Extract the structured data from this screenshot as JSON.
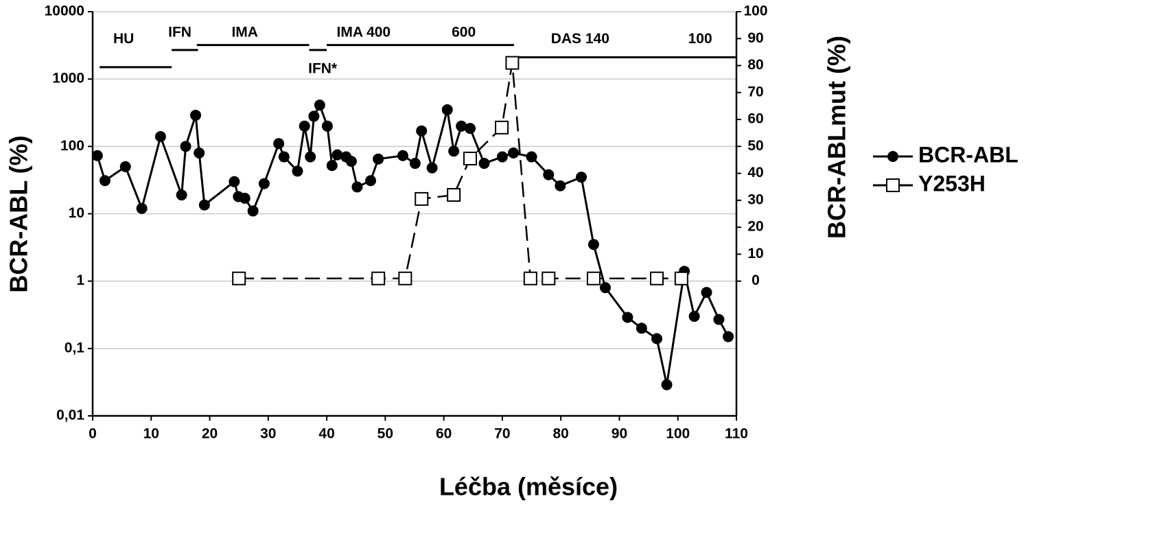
{
  "chart_data": {
    "type": "line",
    "x_label": "Léčba (měsíce)",
    "y_label": "BCR-ABL (%)",
    "y2_label": "BCR-ABLmut (%)",
    "xlim": [
      0,
      110
    ],
    "xticks": [
      0,
      10,
      20,
      30,
      40,
      50,
      60,
      70,
      80,
      90,
      100,
      110
    ],
    "ylim": [
      0.01,
      10000
    ],
    "log_y": true,
    "yticks": [
      {
        "value": 0.01,
        "label": "0,01"
      },
      {
        "value": 0.1,
        "label": "0,1"
      },
      1,
      10,
      100,
      1000,
      10000
    ],
    "y2lim": [
      -50,
      100
    ],
    "y2ticks": [
      0,
      10,
      20,
      30,
      40,
      50,
      60,
      70,
      80,
      90,
      100
    ],
    "grid": true,
    "legend": "right",
    "series": [
      {
        "name": "BCR-ABL",
        "color": "#000000",
        "line_style": "solid",
        "marker": "circle",
        "x": [
          0.8,
          2.1,
          5.6,
          8.4,
          11.6,
          15.2,
          15.9,
          17.6,
          18.2,
          19.1,
          24.2,
          24.9,
          26,
          27.4,
          29.3,
          31.8,
          32.7,
          35,
          36.2,
          37.2,
          37.8,
          38.8,
          40.1,
          40.9,
          41.8,
          43.3,
          44.2,
          45.2,
          47.5,
          48.8,
          53,
          55.1,
          56.2,
          58,
          60.6,
          61.7,
          63,
          64.5,
          66.9,
          70,
          71.9,
          75,
          77.9,
          79.9,
          83.5,
          85.6,
          87.6,
          91.4,
          93.8,
          96.4,
          98.1,
          101.1,
          102.8,
          104.9,
          107,
          108.6
        ],
        "values": [
          73,
          31,
          50,
          12,
          140,
          19,
          100,
          290,
          80,
          13.5,
          30,
          18,
          17,
          11,
          28,
          110,
          70,
          43,
          200,
          70,
          280,
          410,
          200,
          52,
          75,
          70,
          60,
          25,
          31,
          65,
          73,
          56,
          170,
          48,
          350,
          85,
          200,
          185,
          56,
          70,
          80,
          70,
          38,
          26,
          35,
          3.5,
          0.8,
          0.29,
          0.2,
          0.14,
          0.029,
          1.4,
          0.3,
          0.68,
          0.27,
          0.15
        ]
      },
      {
        "name": "Y253H",
        "color": "#000000",
        "line_style": "dashed",
        "marker": "square",
        "axis": "y2",
        "x": [
          25,
          48.8,
          53.4,
          56.2,
          61.7,
          64.5,
          69.9,
          71.7,
          74.8,
          77.9,
          85.6,
          96.4,
          100.6
        ],
        "values": [
          1,
          1,
          1,
          30.5,
          32,
          45.5,
          57,
          81,
          1,
          1,
          1,
          1,
          1
        ]
      }
    ],
    "treatment_bars": [
      {
        "start": 1.2,
        "end": 13.5,
        "y": 1500
      },
      {
        "start": 13.5,
        "end": 18,
        "y": 2700
      },
      {
        "start": 17.8,
        "end": 37,
        "y": 3200
      },
      {
        "start": 37,
        "end": 40,
        "y": 2700
      },
      {
        "start": 40,
        "end": 72,
        "y": 3200
      },
      {
        "start": 72,
        "end": 110,
        "y": 2100
      }
    ],
    "annotations": [
      {
        "text": "HU",
        "x": 5.3,
        "y": 3850
      },
      {
        "text": "IFN",
        "x": 14.9,
        "y": 4850
      },
      {
        "text": "IMA",
        "x": 26,
        "y": 4850
      },
      {
        "text": "IFN*",
        "x": 39.3,
        "y": 1400
      },
      {
        "text": "IMA 400",
        "x": 46.3,
        "y": 4850
      },
      {
        "text": "600",
        "x": 63.4,
        "y": 4850
      },
      {
        "text": "DAS 140",
        "x": 83.3,
        "y": 3850
      },
      {
        "text": "100",
        "x": 103.8,
        "y": 3850
      }
    ]
  }
}
